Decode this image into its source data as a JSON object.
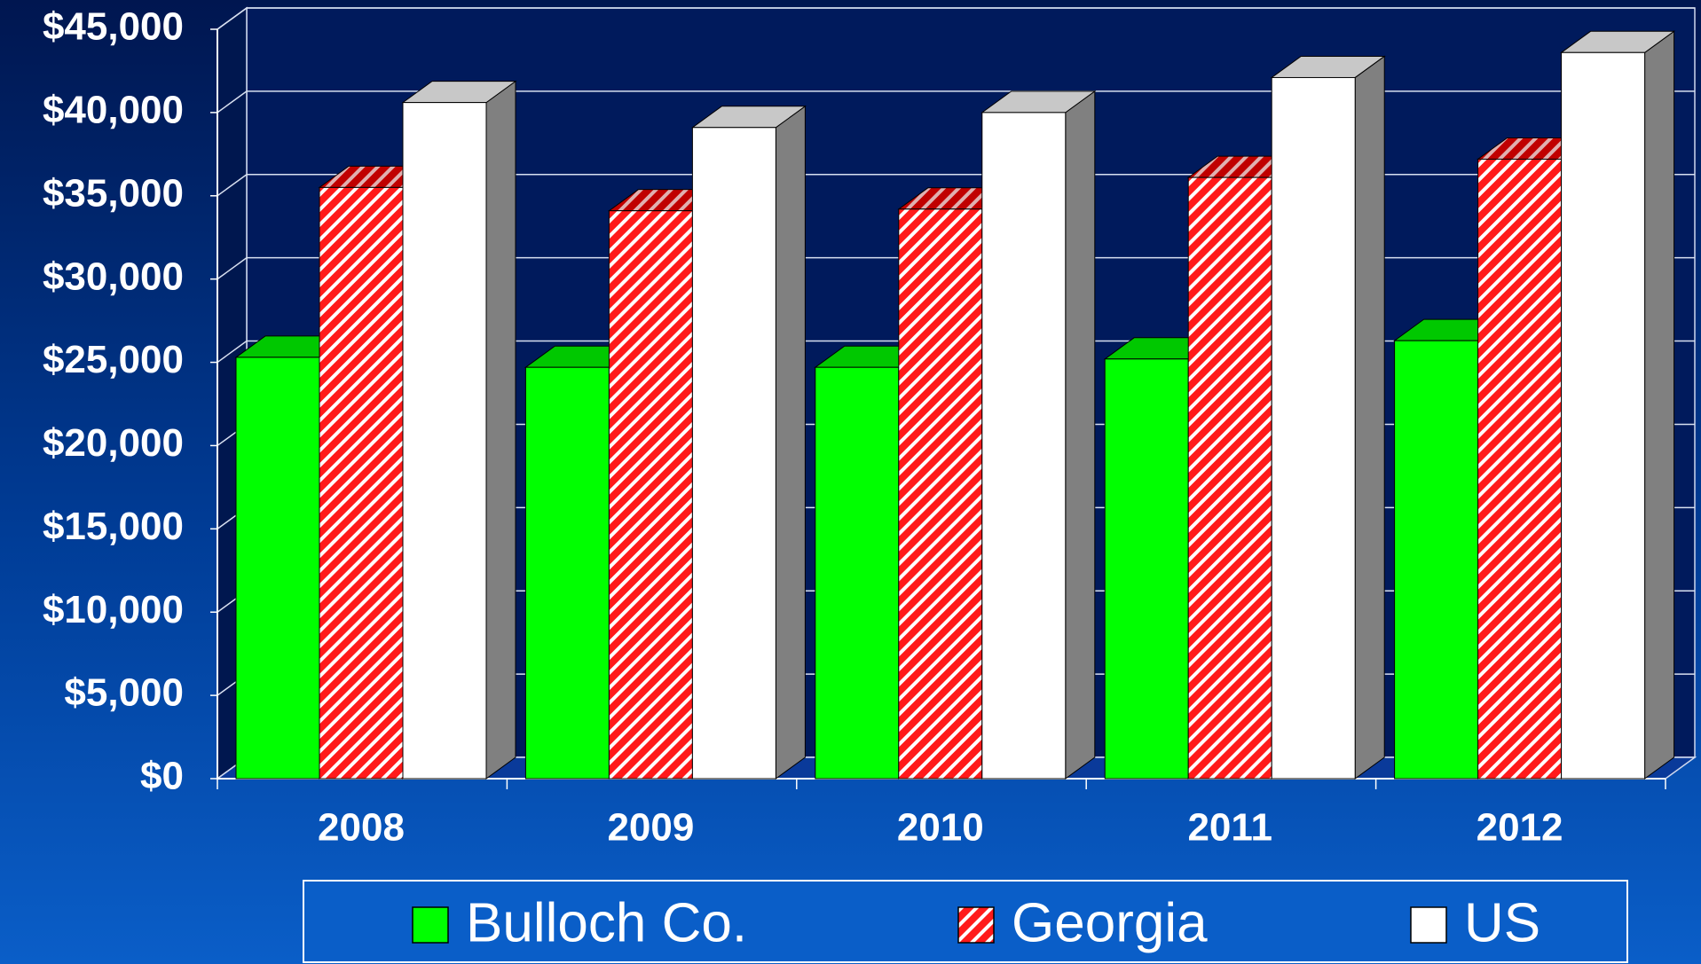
{
  "chart_data": {
    "type": "bar",
    "categories": [
      "2008",
      "2009",
      "2010",
      "2011",
      "2012"
    ],
    "series": [
      {
        "name": "Bulloch Co.",
        "color": "#00ff00",
        "values": [
          25300,
          24700,
          24700,
          25200,
          26300
        ]
      },
      {
        "name": "Georgia",
        "color": "#ff0000",
        "values": [
          35500,
          34100,
          34200,
          36100,
          37200
        ]
      },
      {
        "name": "US",
        "color": "#ffffff",
        "values": [
          40600,
          39100,
          40000,
          42100,
          43600
        ]
      }
    ],
    "ylim": [
      0,
      45000
    ],
    "yticks": [
      {
        "value": 0,
        "label": "$0"
      },
      {
        "value": 5000,
        "label": "$5,000"
      },
      {
        "value": 10000,
        "label": "$10,000"
      },
      {
        "value": 15000,
        "label": "$15,000"
      },
      {
        "value": 20000,
        "label": "$20,000"
      },
      {
        "value": 25000,
        "label": "$25,000"
      },
      {
        "value": 30000,
        "label": "$30,000"
      },
      {
        "value": 35000,
        "label": "$35,000"
      },
      {
        "value": 40000,
        "label": "$40,000"
      },
      {
        "value": 45000,
        "label": "$45,000"
      }
    ],
    "grid": true
  }
}
